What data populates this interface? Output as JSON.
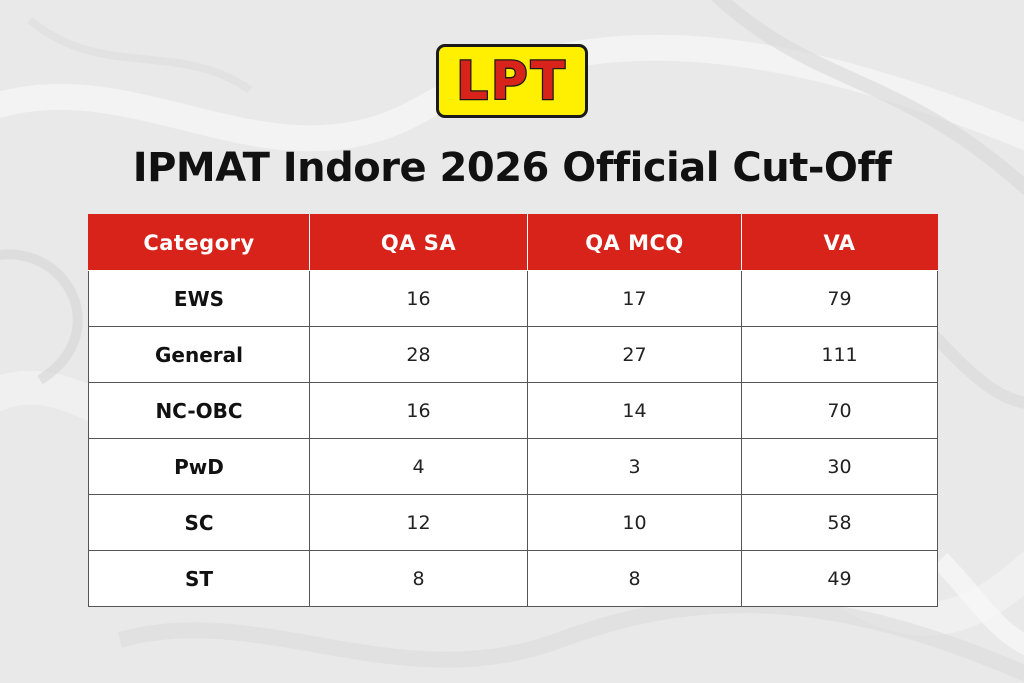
{
  "logo": {
    "text": "LPT",
    "background_color": "#ffef00",
    "text_color": "#d8231b"
  },
  "title": "IPMAT Indore 2026 Official Cut-Off",
  "table": {
    "header_color": "#d8231b",
    "headers": [
      "Category",
      "QA SA",
      "QA MCQ",
      "VA"
    ],
    "rows": [
      [
        "EWS",
        "16",
        "17",
        "79"
      ],
      [
        "General",
        "28",
        "27",
        "111"
      ],
      [
        "NC-OBC",
        "16",
        "14",
        "70"
      ],
      [
        "PwD",
        "4",
        "3",
        "30"
      ],
      [
        "SC",
        "12",
        "10",
        "58"
      ],
      [
        "ST",
        "8",
        "8",
        "49"
      ]
    ]
  }
}
